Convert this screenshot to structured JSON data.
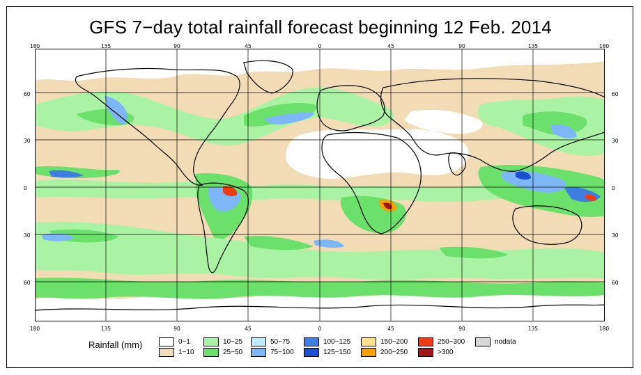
{
  "title": "GFS 7−day total rainfall forecast beginning 12 Feb. 2014",
  "longitude_labels": [
    "180",
    "135",
    "90",
    "45",
    "0",
    "45",
    "90",
    "135",
    "180"
  ],
  "latitude_labels": [
    "60",
    "30",
    "0",
    "30",
    "60"
  ],
  "legend": {
    "title": "Rainfall (mm)",
    "items": [
      {
        "label": "0−1",
        "color": "#ffffff"
      },
      {
        "label": "1−10",
        "color": "#f2dcb5"
      },
      {
        "label": "10−25",
        "color": "#aaf3a4"
      },
      {
        "label": "25−50",
        "color": "#6be06b"
      },
      {
        "label": "50−75",
        "color": "#bdeefd"
      },
      {
        "label": "75−100",
        "color": "#7db7f7"
      },
      {
        "label": "100−125",
        "color": "#3d7ee0"
      },
      {
        "label": "125−150",
        "color": "#1a4fd0"
      },
      {
        "label": "150−200",
        "color": "#ffe38a"
      },
      {
        "label": "200−250",
        "color": "#f7a000"
      },
      {
        "label": "250−300",
        "color": "#ee3b14"
      },
      {
        "label": ">300",
        "color": "#a0161a"
      },
      {
        "label": "nodata",
        "color": "#d8d8d8"
      }
    ]
  },
  "colors": {
    "dry": "#f2dcb5",
    "light": "#aaf3a4",
    "moderate": "#6be06b",
    "heavy": "#7db7f7",
    "very_heavy": "#3d7ee0",
    "extreme": "#ee3b14",
    "gridline": "#000000",
    "coastline": "#000000"
  }
}
